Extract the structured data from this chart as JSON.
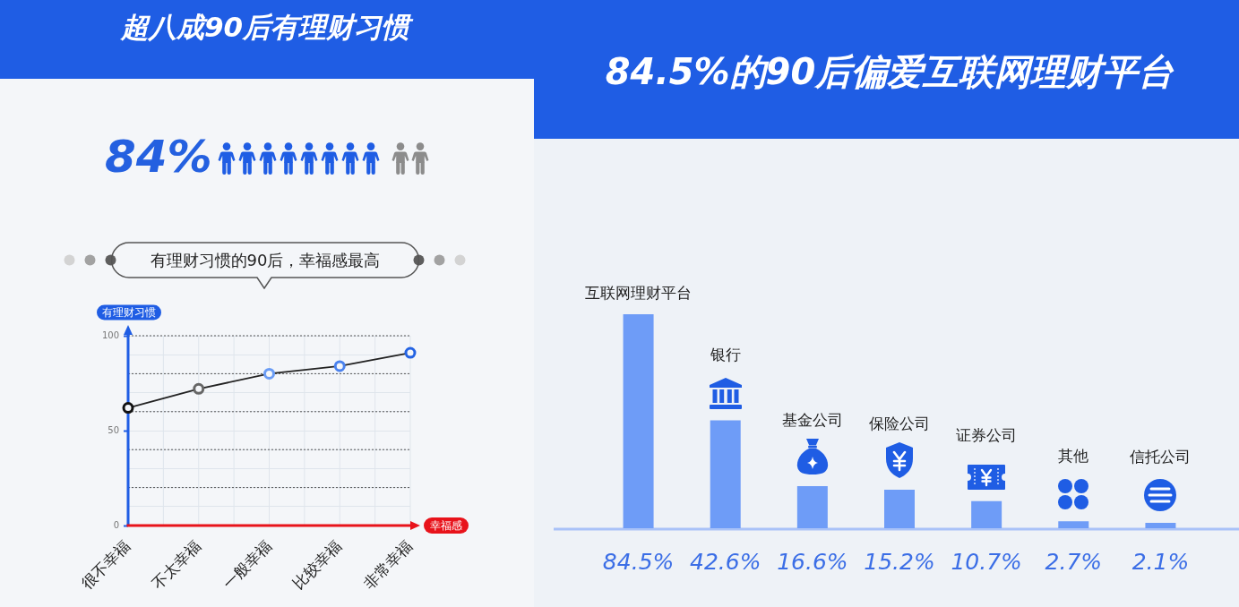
{
  "chart_data": [
    {
      "type": "line",
      "title": "超八成90后有理财习惯",
      "subtitle": "有理财习惯的90后，幸福感最高",
      "annotations": [
        "84%"
      ],
      "xlabel": "幸福感",
      "ylabel": "有理财习惯",
      "categories": [
        "很不幸福",
        "不太幸福",
        "一般幸福",
        "比较幸福",
        "非常幸福"
      ],
      "series": [
        {
          "color": "#222222",
          "colors": [
            "#111111",
            "#666666",
            "#6a9cf5",
            "#4a82ee",
            "#2463e3"
          ],
          "values": [
            62,
            72,
            80,
            84,
            91
          ]
        }
      ],
      "ylim": [
        0,
        100
      ],
      "yticks": [
        0,
        {
          "value": 10,
          "label": null
        },
        {
          "value": 20,
          "label": null
        },
        {
          "value": 30,
          "label": null
        },
        {
          "value": 40,
          "label": null
        },
        50,
        {
          "value": 60,
          "label": null
        },
        {
          "value": 70,
          "label": null
        },
        {
          "value": 80,
          "label": null
        },
        {
          "value": 90,
          "label": null
        },
        100
      ],
      "grid": true,
      "marker": "circle"
    },
    {
      "type": "bar",
      "title": "84.5%的90后偏爱互联网理财平台",
      "categories": [
        "互联网理财平台",
        "银行",
        "基金公司",
        "保险公司",
        "证券公司",
        "其他",
        "信托公司"
      ],
      "values": [
        84.5,
        42.6,
        16.6,
        15.2,
        10.7,
        2.7,
        2.1
      ],
      "color": "#6e9cf7",
      "value_labels": [
        "84.5%",
        "42.6%",
        "16.6%",
        "15.2%",
        "10.7%",
        "2.7%",
        "2.1%"
      ],
      "tick_labels": "x"
    }
  ]
}
